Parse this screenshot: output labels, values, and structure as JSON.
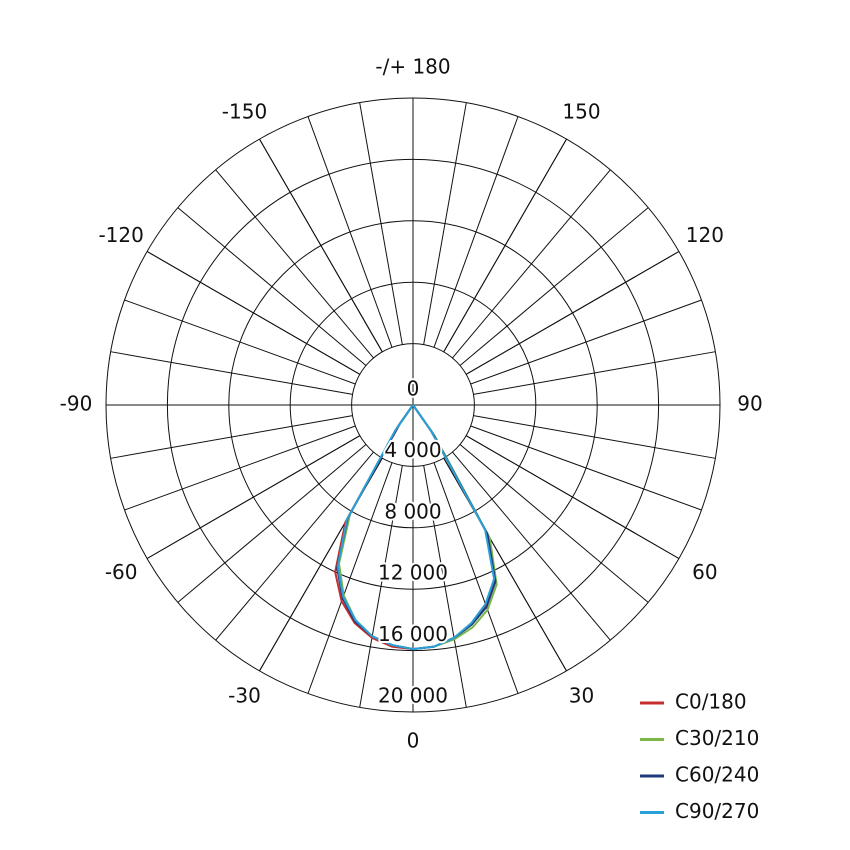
{
  "chart_data": {
    "type": "polar",
    "theta": [
      -40,
      -35,
      -30,
      -25,
      -20,
      -15,
      -10,
      -5,
      0,
      5,
      10,
      15,
      20,
      25,
      30,
      35,
      40
    ],
    "series": [
      {
        "name": "C0/180",
        "color": "#c62d2d",
        "values": [
          0,
          1500,
          8800,
          12000,
          13600,
          14700,
          15400,
          15800,
          15900,
          15800,
          15400,
          14800,
          13900,
          12600,
          9500,
          2000,
          0
        ]
      },
      {
        "name": "C30/210",
        "color": "#7cb648",
        "values": [
          0,
          1800,
          8200,
          11400,
          13200,
          14500,
          15300,
          15700,
          15900,
          15800,
          15500,
          15000,
          14200,
          12900,
          10000,
          2500,
          0
        ]
      },
      {
        "name": "C60/240",
        "color": "#1f3a7a",
        "values": [
          0,
          1600,
          8500,
          11700,
          13400,
          14600,
          15300,
          15700,
          15900,
          15800,
          15400,
          14800,
          14000,
          12700,
          9700,
          2200,
          0
        ]
      },
      {
        "name": "C90/270",
        "color": "#2aa0d8",
        "values": [
          0,
          2000,
          8600,
          11600,
          13300,
          14500,
          15300,
          15700,
          15900,
          15800,
          15400,
          14700,
          13800,
          12500,
          9400,
          2000,
          0
        ]
      }
    ],
    "rlim": [
      0,
      20000
    ],
    "rticks": [
      0,
      {
        "value": 4000,
        "label": "4 000"
      },
      {
        "value": 8000,
        "label": "8 000"
      },
      {
        "value": 12000,
        "label": "12 000"
      },
      {
        "value": 16000,
        "label": "16 000"
      },
      {
        "value": 20000,
        "label": "20 000"
      }
    ],
    "thetaticks": [
      0,
      30,
      60,
      90,
      120,
      150,
      {
        "value": 180,
        "label": "-/+ 180"
      },
      -150,
      -120,
      -90,
      -60,
      -30
    ],
    "grid": true,
    "legend": "lower right"
  }
}
